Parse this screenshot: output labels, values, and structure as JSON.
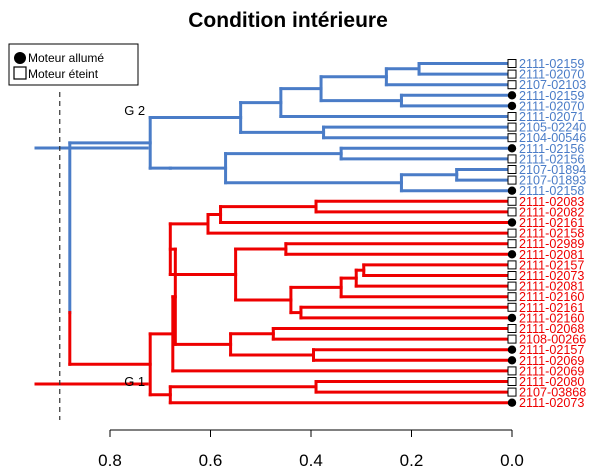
{
  "chart_data": {
    "type": "dendrogram",
    "title": "Condition intérieure",
    "xlabel": "",
    "ylabel": "",
    "x_axis": {
      "direction": "reversed",
      "lim": [
        0.8,
        0.0
      ],
      "ticks": [
        "0.8",
        "0.6",
        "0.4",
        "0.2",
        "0.0"
      ],
      "tick_values": [
        0.8,
        0.6,
        0.4,
        0.2,
        0.0
      ]
    },
    "cut_height": 0.9,
    "colors": {
      "G 1": "#ee0000",
      "G 2": "#4a7cc7",
      "root": "#4a7cc7"
    },
    "legend": {
      "position": "top-left",
      "items": [
        {
          "label": "Moteur allumé",
          "symbol": "filled-circle"
        },
        {
          "label": "Moteur éteint",
          "symbol": "open-square"
        }
      ]
    },
    "group_labels": [
      {
        "name": "G 2",
        "height": 0.72,
        "group": "G 2"
      },
      {
        "name": "G 1",
        "height": 0.72,
        "group": "G 1"
      }
    ],
    "leaves": [
      {
        "label": "2111-02159",
        "moteur": "éteint",
        "group": "G 2"
      },
      {
        "label": "2111-02070",
        "moteur": "éteint",
        "group": "G 2"
      },
      {
        "label": "2107-02103",
        "moteur": "éteint",
        "group": "G 2"
      },
      {
        "label": "2111-02159",
        "moteur": "allumé",
        "group": "G 2"
      },
      {
        "label": "2111-02070",
        "moteur": "allumé",
        "group": "G 2"
      },
      {
        "label": "2111-02071",
        "moteur": "éteint",
        "group": "G 2"
      },
      {
        "label": "2105-02240",
        "moteur": "éteint",
        "group": "G 2"
      },
      {
        "label": "2104-00546",
        "moteur": "éteint",
        "group": "G 2"
      },
      {
        "label": "2111-02156",
        "moteur": "allumé",
        "group": "G 2"
      },
      {
        "label": "2111-02156",
        "moteur": "éteint",
        "group": "G 2"
      },
      {
        "label": "2107-01894",
        "moteur": "éteint",
        "group": "G 2"
      },
      {
        "label": "2107-01893",
        "moteur": "éteint",
        "group": "G 2"
      },
      {
        "label": "2111-02158",
        "moteur": "allumé",
        "group": "G 2"
      },
      {
        "label": "2111-02083",
        "moteur": "éteint",
        "group": "G 1"
      },
      {
        "label": "2111-02082",
        "moteur": "éteint",
        "group": "G 1"
      },
      {
        "label": "2111-02161",
        "moteur": "allumé",
        "group": "G 1"
      },
      {
        "label": "2111-02158",
        "moteur": "éteint",
        "group": "G 1"
      },
      {
        "label": "2111-02989",
        "moteur": "éteint",
        "group": "G 1"
      },
      {
        "label": "2111-02081",
        "moteur": "allumé",
        "group": "G 1"
      },
      {
        "label": "2111-02157",
        "moteur": "éteint",
        "group": "G 1"
      },
      {
        "label": "2111-02073",
        "moteur": "éteint",
        "group": "G 1"
      },
      {
        "label": "2111-02081",
        "moteur": "éteint",
        "group": "G 1"
      },
      {
        "label": "2111-02160",
        "moteur": "éteint",
        "group": "G 1"
      },
      {
        "label": "2111-02161",
        "moteur": "éteint",
        "group": "G 1"
      },
      {
        "label": "2111-02160",
        "moteur": "allumé",
        "group": "G 1"
      },
      {
        "label": "2111-02068",
        "moteur": "éteint",
        "group": "G 1"
      },
      {
        "label": "2108-00266",
        "moteur": "éteint",
        "group": "G 1"
      },
      {
        "label": "2111-02157",
        "moteur": "allumé",
        "group": "G 1"
      },
      {
        "label": "2111-02069",
        "moteur": "allumé",
        "group": "G 1"
      },
      {
        "label": "2111-02069",
        "moteur": "éteint",
        "group": "G 1"
      },
      {
        "label": "2111-02080",
        "moteur": "éteint",
        "group": "G 1"
      },
      {
        "label": "2107-03868",
        "moteur": "éteint",
        "group": "G 1"
      },
      {
        "label": "2111-02073",
        "moteur": "allumé",
        "group": "G 1"
      }
    ],
    "merges": [
      {
        "children": [
          "L0",
          "L1"
        ],
        "height": 0.185
      },
      {
        "children": [
          "L3",
          "L4"
        ],
        "height": 0.22
      },
      {
        "children": [
          "M0",
          "L2"
        ],
        "height": 0.25
      },
      {
        "children": [
          "M2",
          "M1"
        ],
        "height": 0.38
      },
      {
        "children": [
          "M3",
          "L5"
        ],
        "height": 0.46
      },
      {
        "children": [
          "L6",
          "L7"
        ],
        "height": 0.375
      },
      {
        "children": [
          "M4",
          "M5"
        ],
        "height": 0.54
      },
      {
        "children": [
          "L8",
          "L9"
        ],
        "height": 0.34
      },
      {
        "children": [
          "L10",
          "L11"
        ],
        "height": 0.11
      },
      {
        "children": [
          "M8",
          "L12"
        ],
        "height": 0.22
      },
      {
        "children": [
          "M7",
          "M9"
        ],
        "height": 0.57
      },
      {
        "children": [
          "M10",
          "M10b"
        ],
        "height": 0.68
      },
      {
        "children": [
          "M6",
          "M11"
        ],
        "height": 0.72
      },
      {
        "children": [
          "L13",
          "L14"
        ],
        "height": 0.39
      },
      {
        "children": [
          "M13",
          "L15"
        ],
        "height": 0.58
      },
      {
        "children": [
          "M14",
          "L16"
        ],
        "height": 0.605
      },
      {
        "children": [
          "L17",
          "L18"
        ],
        "height": 0.45
      },
      {
        "children": [
          "L19",
          "L20"
        ],
        "height": 0.295
      },
      {
        "children": [
          "M17",
          "L21"
        ],
        "height": 0.31
      },
      {
        "children": [
          "M18",
          "L22"
        ],
        "height": 0.34
      },
      {
        "children": [
          "L23",
          "L24"
        ],
        "height": 0.42
      },
      {
        "children": [
          "M19",
          "M20"
        ],
        "height": 0.44
      },
      {
        "children": [
          "M16",
          "M21"
        ],
        "height": 0.55
      },
      {
        "children": [
          "M15",
          "M22"
        ],
        "height": 0.68
      },
      {
        "children": [
          "L25",
          "L26"
        ],
        "height": 0.475
      },
      {
        "children": [
          "L27",
          "L28"
        ],
        "height": 0.395
      },
      {
        "children": [
          "M24",
          "M25"
        ],
        "height": 0.56
      },
      {
        "children": [
          "M23",
          "M26"
        ],
        "height": 0.67
      },
      {
        "children": [
          "M27",
          "L29"
        ],
        "height": 0.675
      },
      {
        "children": [
          "L30",
          "L31"
        ],
        "height": 0.39
      },
      {
        "children": [
          "M29",
          "L32"
        ],
        "height": 0.68
      },
      {
        "children": [
          "M28",
          "M30"
        ],
        "height": 0.72
      },
      {
        "children": [
          "M12",
          "M31"
        ],
        "height": 0.88
      }
    ]
  }
}
